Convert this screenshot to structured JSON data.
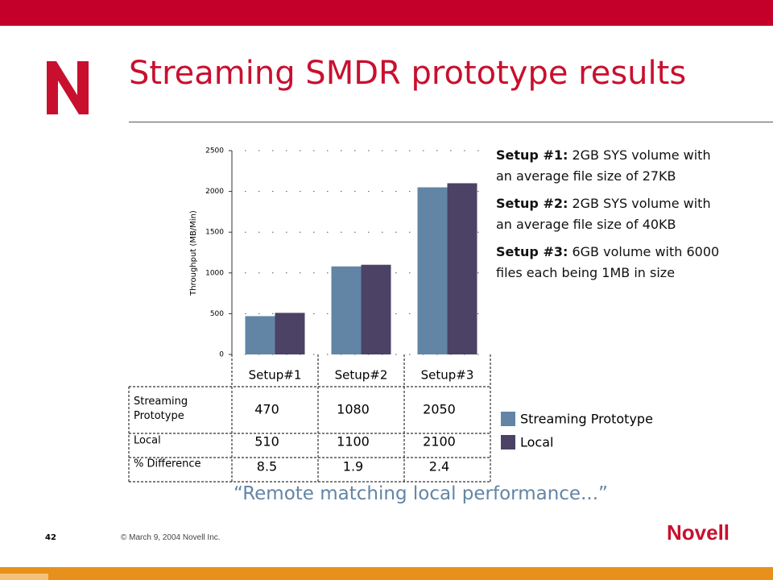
{
  "slide": {
    "title": "Streaming SMDR prototype results",
    "notes": [
      {
        "label": "Setup #1:",
        "text": "2GB SYS volume with an average file size of 27KB"
      },
      {
        "label": "Setup #2:",
        "text": "2GB SYS volume with an average file size of 40KB"
      },
      {
        "label": "Setup #3:",
        "text": "6GB volume with 6000 files each being 1MB in size"
      }
    ],
    "quote": "“Remote matching local performance...”",
    "page_number": "42",
    "footer": "© March 9, 2004 Novell Inc.",
    "logo": "Novell"
  },
  "chart_data": {
    "type": "bar",
    "y_label": "Throughput (MB/Min)",
    "categories": [
      "Setup#1",
      "Setup#2",
      "Setup#3"
    ],
    "series": [
      {
        "name": "Streaming Prototype",
        "color": "#6285a6",
        "values": [
          470,
          1080,
          2050
        ]
      },
      {
        "name": "Local",
        "color": "#4b4265",
        "values": [
          510,
          1100,
          2100
        ]
      }
    ],
    "difference_label": "% Difference",
    "difference": [
      8.5,
      1.9,
      2.4
    ],
    "ylim": [
      0,
      2500
    ],
    "yticks": [
      0,
      500,
      1000,
      1500,
      2000,
      2500
    ],
    "grid": true
  }
}
